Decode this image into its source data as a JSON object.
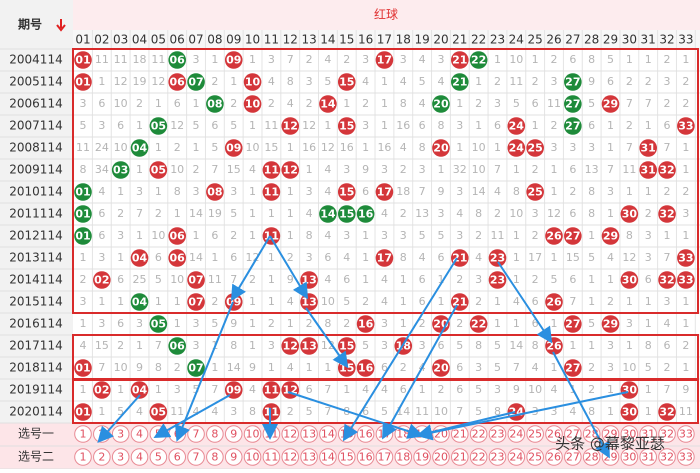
{
  "header": {
    "period": "期号",
    "red_zone": "红球",
    "columns": [
      "01",
      "02",
      "03",
      "04",
      "05",
      "06",
      "07",
      "08",
      "09",
      "10",
      "11",
      "12",
      "13",
      "14",
      "15",
      "16",
      "17",
      "18",
      "19",
      "20",
      "21",
      "22",
      "23",
      "24",
      "25",
      "26",
      "27",
      "28",
      "29",
      "30",
      "31",
      "32",
      "33"
    ]
  },
  "rows": [
    {
      "period": "2004114",
      "red": [
        "01",
        "09",
        "17",
        "21"
      ],
      "green": [
        "06",
        "22"
      ],
      "miss": [
        null,
        11,
        11,
        18,
        11,
        null,
        3,
        1,
        null,
        1,
        3,
        7,
        2,
        4,
        2,
        3,
        null,
        3,
        4,
        3,
        null,
        null,
        1,
        10,
        1,
        2,
        6,
        8,
        5,
        1,
        1,
        2,
        1
      ]
    },
    {
      "period": "2005114",
      "red": [
        "01",
        "06",
        "10",
        "15"
      ],
      "green": [
        "07",
        "21",
        "27"
      ],
      "miss": [
        null,
        1,
        12,
        19,
        12,
        null,
        null,
        2,
        1,
        null,
        4,
        8,
        3,
        5,
        null,
        4,
        1,
        4,
        5,
        4,
        null,
        1,
        2,
        11,
        2,
        3,
        null,
        9,
        6,
        2,
        2,
        3,
        2
      ]
    },
    {
      "period": "2006114",
      "red": [
        "10",
        "14",
        "29"
      ],
      "green": [
        "08",
        "20",
        "27"
      ],
      "miss": [
        3,
        6,
        10,
        2,
        1,
        6,
        1,
        null,
        2,
        null,
        2,
        4,
        2,
        null,
        1,
        2,
        1,
        8,
        4,
        null,
        1,
        2,
        3,
        5,
        6,
        11,
        null,
        5,
        null,
        7,
        7,
        2,
        2
      ]
    },
    {
      "period": "2007114",
      "red": [
        "12",
        "15",
        "24",
        "33"
      ],
      "green": [
        "05",
        "27"
      ],
      "miss": [
        5,
        3,
        6,
        1,
        null,
        12,
        5,
        6,
        5,
        1,
        11,
        null,
        12,
        1,
        null,
        3,
        1,
        16,
        6,
        8,
        3,
        1,
        6,
        null,
        1,
        2,
        null,
        6,
        1,
        2,
        1,
        6,
        null
      ]
    },
    {
      "period": "2008114",
      "red": [
        "09",
        "20",
        "24",
        "25",
        "31"
      ],
      "green": [
        "04"
      ],
      "miss": [
        11,
        24,
        10,
        null,
        1,
        2,
        1,
        5,
        null,
        10,
        15,
        1,
        16,
        12,
        16,
        1,
        16,
        4,
        8,
        null,
        1,
        10,
        1,
        null,
        null,
        3,
        3,
        3,
        1,
        7,
        null,
        7,
        1
      ]
    },
    {
      "period": "2009114",
      "red": [
        "05",
        "11",
        "12",
        "31",
        "32"
      ],
      "green": [
        "03"
      ],
      "miss": [
        8,
        34,
        null,
        1,
        null,
        10,
        2,
        7,
        15,
        4,
        null,
        null,
        1,
        4,
        3,
        9,
        3,
        2,
        3,
        1,
        32,
        10,
        7,
        1,
        2,
        1,
        6,
        13,
        7,
        11,
        null,
        null,
        1
      ]
    },
    {
      "period": "2010114",
      "red": [
        "08",
        "11",
        "15",
        "17",
        "25"
      ],
      "green": [
        "01"
      ],
      "miss": [
        null,
        4,
        1,
        3,
        1,
        8,
        3,
        null,
        3,
        1,
        null,
        1,
        3,
        4,
        null,
        6,
        null,
        18,
        7,
        9,
        3,
        14,
        4,
        8,
        null,
        1,
        2,
        8,
        3,
        1,
        1,
        2,
        2
      ]
    },
    {
      "period": "2011114",
      "red": [
        "30",
        "32"
      ],
      "green": [
        "01",
        "14",
        "15",
        "16"
      ],
      "miss": [
        null,
        6,
        2,
        7,
        2,
        1,
        14,
        19,
        5,
        1,
        1,
        1,
        4,
        null,
        null,
        null,
        4,
        2,
        13,
        3,
        4,
        8,
        2,
        10,
        3,
        12,
        6,
        8,
        1,
        null,
        2,
        null,
        3
      ]
    },
    {
      "period": "2012114",
      "red": [
        "06",
        "11",
        "26",
        "27",
        "29"
      ],
      "green": [
        "01"
      ],
      "miss": [
        null,
        6,
        3,
        1,
        10,
        null,
        1,
        6,
        2,
        1,
        null,
        1,
        8,
        4,
        3,
        1,
        3,
        3,
        5,
        5,
        3,
        2,
        11,
        1,
        2,
        null,
        null,
        1,
        null,
        8,
        3,
        1,
        1
      ]
    },
    {
      "period": "2013114",
      "red": [
        "04",
        "06",
        "17",
        "21",
        "23",
        "33"
      ],
      "green": [],
      "miss": [
        1,
        3,
        1,
        null,
        6,
        null,
        14,
        1,
        6,
        12,
        1,
        2,
        3,
        6,
        4,
        1,
        null,
        8,
        4,
        6,
        null,
        4,
        null,
        1,
        17,
        1,
        15,
        5,
        4,
        12,
        3,
        7,
        null
      ]
    },
    {
      "period": "2014114",
      "red": [
        "02",
        "07",
        "13",
        "23",
        "30",
        "32",
        "33"
      ],
      "green": [],
      "miss": [
        2,
        null,
        6,
        25,
        5,
        10,
        null,
        11,
        7,
        2,
        1,
        9,
        null,
        4,
        6,
        1,
        4,
        1,
        6,
        1,
        2,
        3,
        null,
        1,
        2,
        5,
        6,
        1,
        1,
        null,
        6,
        null,
        null
      ]
    },
    {
      "period": "2015114",
      "red": [
        "07",
        "09",
        "13",
        "21",
        "26"
      ],
      "green": [
        "04"
      ],
      "miss": [
        3,
        1,
        1,
        null,
        1,
        1,
        null,
        2,
        null,
        1,
        1,
        4,
        null,
        10,
        5,
        2,
        4,
        1,
        6,
        1,
        null,
        2,
        1,
        4,
        6,
        null,
        7,
        1,
        2,
        1,
        1,
        3,
        1
      ]
    },
    {
      "period": "2016114",
      "red": [
        "16",
        "20",
        "22",
        "27",
        "29"
      ],
      "green": [
        "05"
      ],
      "miss": [
        1,
        3,
        6,
        3,
        null,
        1,
        3,
        5,
        9,
        1,
        2,
        1,
        2,
        8,
        2,
        null,
        3,
        1,
        2,
        null,
        2,
        null,
        1,
        1,
        6,
        1,
        null,
        5,
        null,
        3,
        1,
        4,
        1
      ]
    },
    {
      "period": "2017114",
      "red": [
        "12",
        "13",
        "15",
        "18",
        "26"
      ],
      "green": [
        "06"
      ],
      "miss": [
        4,
        15,
        2,
        1,
        7,
        null,
        3,
        1,
        8,
        1,
        3,
        null,
        null,
        12,
        null,
        5,
        3,
        null,
        3,
        6,
        5,
        8,
        5,
        14,
        8,
        null,
        1,
        1,
        3,
        1,
        8,
        6,
        2
      ]
    },
    {
      "period": "2018114",
      "red": [
        "01",
        "15",
        "16",
        "20",
        "27"
      ],
      "green": [
        "07"
      ],
      "miss": [
        null,
        7,
        10,
        9,
        8,
        2,
        null,
        1,
        14,
        9,
        1,
        4,
        1,
        1,
        null,
        null,
        6,
        2,
        4,
        null,
        6,
        3,
        5,
        7,
        4,
        1,
        null,
        2,
        3,
        10,
        5,
        2,
        1
      ]
    },
    {
      "period": "2019114",
      "red": [
        "02",
        "04",
        "09",
        "11",
        "12",
        "30"
      ],
      "green": [],
      "miss": [
        1,
        null,
        1,
        null,
        1,
        3,
        5,
        7,
        null,
        4,
        null,
        null,
        6,
        7,
        1,
        4,
        4,
        6,
        1,
        2,
        6,
        5,
        3,
        9,
        10,
        4,
        1,
        2,
        1,
        null,
        1,
        7,
        9
      ]
    },
    {
      "period": "2020114",
      "red": [
        "01",
        "05",
        "11",
        "24",
        "30",
        "32"
      ],
      "green": [],
      "miss": [
        null,
        1,
        5,
        4,
        null,
        11,
        4,
        4,
        3,
        8,
        null,
        2,
        5,
        7,
        8,
        6,
        5,
        14,
        11,
        10,
        7,
        5,
        8,
        null,
        3,
        3,
        4,
        8,
        1,
        null,
        1,
        null,
        11
      ]
    }
  ],
  "picks": [
    {
      "label": "选号一",
      "numbers": [
        "1",
        "2",
        "3",
        "4",
        "5",
        "6",
        "7",
        "8",
        "9",
        "10",
        "11",
        "12",
        "13",
        "14",
        "15",
        "16",
        "17",
        "18",
        "19",
        "20",
        "21",
        "22",
        "23",
        "24",
        "25",
        "26",
        "27",
        "28",
        "29",
        "30",
        "31",
        "32",
        "33"
      ]
    },
    {
      "label": "选号二",
      "numbers": [
        "1",
        "2",
        "3",
        "4",
        "5",
        "6",
        "7",
        "8",
        "9",
        "10",
        "11",
        "12",
        "13",
        "14",
        "15",
        "16",
        "17",
        "18",
        "19",
        "20",
        "21",
        "22",
        "23",
        "24",
        "25",
        "26",
        "27",
        "28",
        "29",
        "30",
        "31",
        "32",
        "33"
      ]
    }
  ],
  "watermark": "头条 @幕黎亚瑟"
}
